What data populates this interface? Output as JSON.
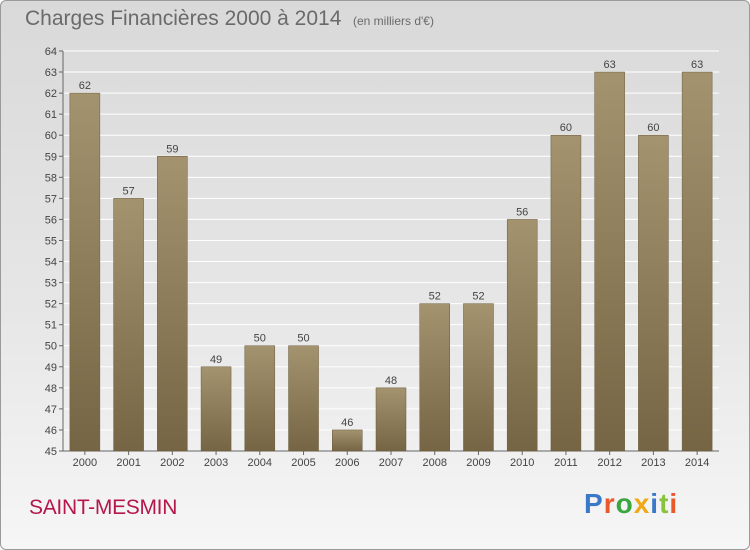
{
  "header": {
    "title": "Charges Financières 2000 à 2014",
    "subtitle": "(en milliers d'€)"
  },
  "footer": {
    "commune": "SAINT-MESMIN",
    "logo_text": "Proxiti",
    "logo_colors": [
      "#3a78c8",
      "#e8582a",
      "#3aa640",
      "#f0a818",
      "#3a78c8",
      "#8ac43c",
      "#e8582a"
    ]
  },
  "colors": {
    "bar_top": "#a4936f",
    "bar_bottom": "#766544",
    "text": "#444444",
    "grid": "#ffffff"
  },
  "chart_data": {
    "type": "bar",
    "categories": [
      "2000",
      "2001",
      "2002",
      "2003",
      "2004",
      "2005",
      "2006",
      "2007",
      "2008",
      "2009",
      "2010",
      "2011",
      "2012",
      "2013",
      "2014"
    ],
    "values": [
      62,
      57,
      59,
      49,
      50,
      50,
      46,
      48,
      52,
      52,
      56,
      60,
      63,
      60,
      63
    ],
    "ylim": [
      45,
      64
    ],
    "yticks": [
      45,
      46,
      47,
      48,
      49,
      50,
      51,
      52,
      53,
      54,
      55,
      56,
      57,
      58,
      59,
      60,
      61,
      62,
      63,
      64
    ],
    "grid": true,
    "data_labels": true
  }
}
